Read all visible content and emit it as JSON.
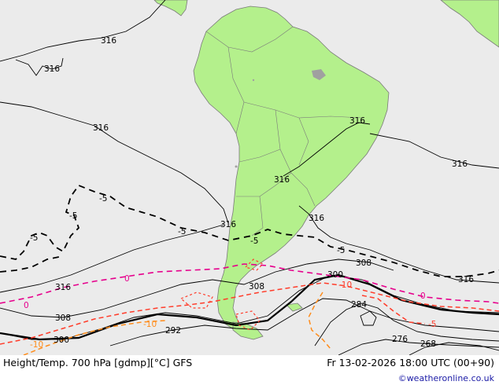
{
  "map": {
    "colors": {
      "ocean": "#ebebeb",
      "land": "#b4f08c",
      "land_border": "#7a7a7a",
      "height_contour": "#000000",
      "temp_neg5": "#000000",
      "temp_0": "#e6008c",
      "temp_neg10": "#ff3c2a",
      "temp_neg10_alt": "#ff8c1a"
    },
    "height_labels": {
      "l316_nw": "316",
      "l316_w1": "316",
      "l316_w2": "316",
      "l316_br": "316",
      "l316_c": "316",
      "l316_e": "316",
      "l316_lp": "316",
      "l316_ar": "316",
      "l316_se": "316",
      "l316_sw": "316",
      "l308_sw": "308",
      "l308_c": "308",
      "l308_e": "308",
      "l300_sw": "300",
      "l300_e": "300",
      "l292": "292",
      "l284": "284",
      "l276": "276",
      "l268": "268"
    },
    "temp_labels": {
      "t5_a": "-5",
      "t5_b": "-5",
      "t5_c": "-5",
      "t5_d": "-5",
      "t5_e": "-5",
      "t5_f": "-5",
      "t0_a": "0",
      "t0_b": "0",
      "t0_c": "0",
      "t10_a": "-10",
      "t10_b": "-10",
      "t10_c": "-10",
      "t5_r": "-5"
    }
  },
  "footer": {
    "title": "Height/Temp. 700 hPa [gdmp][°C] GFS",
    "valid_time": "Fr 13-02-2026 18:00 UTC (00+90)",
    "credit": "©weatheronline.co.uk"
  }
}
